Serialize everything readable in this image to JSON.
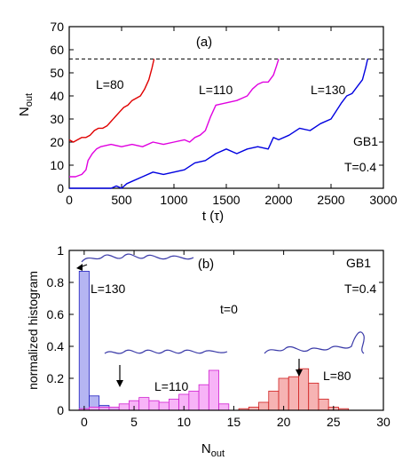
{
  "colors": {
    "red": "#e00000",
    "magenta": "#e000e0",
    "blue": "#0000e0",
    "red_fill": "#f4a6a6",
    "magenta_fill": "#f6a6f6",
    "blue_fill": "#a8a8f0",
    "dashed": "#000000",
    "chain": "#3a3aa8"
  },
  "chart_data": [
    {
      "type": "line",
      "panel_label": "(a)",
      "xlabel": "t (τ)",
      "ylabel_main": "N",
      "ylabel_sub": "out",
      "xlim": [
        0,
        3000
      ],
      "ylim": [
        0,
        70
      ],
      "xticks": [
        0,
        500,
        1000,
        1500,
        2000,
        2500,
        3000
      ],
      "yticks": [
        0,
        10,
        20,
        30,
        40,
        50,
        60,
        70
      ],
      "reference_line": {
        "y": 56,
        "style": "dashed"
      },
      "annotations": [
        "GB1",
        "T=0.4"
      ],
      "series": [
        {
          "name": "L=80",
          "color": "#e00000",
          "x": [
            0,
            40,
            80,
            120,
            160,
            200,
            240,
            280,
            320,
            360,
            400,
            440,
            480,
            520,
            560,
            600,
            640,
            680,
            720,
            760,
            790,
            810
          ],
          "y": [
            21,
            20,
            21,
            22,
            22,
            23,
            25,
            26,
            26,
            27,
            29,
            31,
            33,
            35,
            36,
            38,
            39,
            40,
            43,
            47,
            52,
            56
          ]
        },
        {
          "name": "L=110",
          "color": "#e000e0",
          "x": [
            0,
            60,
            120,
            160,
            180,
            220,
            260,
            300,
            400,
            500,
            600,
            700,
            800,
            900,
            1000,
            1100,
            1150,
            1200,
            1250,
            1300,
            1350,
            1400,
            1500,
            1600,
            1650,
            1700,
            1750,
            1800,
            1850,
            1900,
            1950,
            1980,
            2000
          ],
          "y": [
            5,
            5,
            6,
            8,
            12,
            15,
            17,
            18,
            19,
            18,
            19,
            18,
            20,
            19,
            20,
            21,
            20,
            22,
            23,
            25,
            31,
            36,
            37,
            38,
            39,
            40,
            43,
            45,
            46,
            46,
            49,
            53,
            56
          ]
        },
        {
          "name": "L=130",
          "color": "#0000e0",
          "x": [
            0,
            300,
            400,
            450,
            500,
            550,
            600,
            700,
            800,
            900,
            1000,
            1100,
            1200,
            1300,
            1400,
            1500,
            1600,
            1700,
            1800,
            1900,
            1950,
            2000,
            2100,
            2200,
            2300,
            2400,
            2500,
            2600,
            2650,
            2700,
            2750,
            2800,
            2830,
            2850
          ],
          "y": [
            0,
            0,
            0,
            1,
            0,
            2,
            3,
            5,
            7,
            6,
            7,
            8,
            11,
            12,
            15,
            17,
            15,
            17,
            18,
            17,
            22,
            21,
            23,
            26,
            25,
            28,
            30,
            37,
            40,
            41,
            44,
            47,
            52,
            56
          ]
        }
      ]
    },
    {
      "type": "bar",
      "panel_label": "(b)",
      "xlabel_main": "N",
      "xlabel_sub": "out",
      "ylabel": "normalized histogram",
      "xlim": [
        -1.5,
        30
      ],
      "ylim": [
        0,
        1
      ],
      "xticks": [
        0,
        5,
        10,
        15,
        20,
        25,
        30
      ],
      "yticks": [
        0,
        0.2,
        0.4,
        0.6,
        0.8,
        1
      ],
      "annotations": [
        "GB1",
        "T=0.4",
        "t=0"
      ],
      "series": [
        {
          "name": "L=130",
          "color": "#a8a8f0",
          "x": [
            0,
            1,
            2,
            3
          ],
          "values": [
            0.87,
            0.09,
            0.03,
            0.01
          ]
        },
        {
          "name": "L=110",
          "color": "#f6a6f6",
          "x": [
            0,
            1,
            2,
            3,
            4,
            5,
            6,
            7,
            8,
            9,
            10,
            11,
            12,
            13,
            14
          ],
          "values": [
            0.01,
            0.02,
            0.02,
            0.02,
            0.04,
            0.06,
            0.08,
            0.06,
            0.05,
            0.07,
            0.1,
            0.12,
            0.16,
            0.25,
            0.04
          ]
        },
        {
          "name": "L=80",
          "color": "#f4a6a6",
          "x": [
            16,
            17,
            18,
            19,
            20,
            21,
            22,
            23,
            24,
            25,
            26
          ],
          "values": [
            0.01,
            0.02,
            0.05,
            0.12,
            0.2,
            0.21,
            0.26,
            0.17,
            0.07,
            0.02,
            0.01
          ]
        }
      ]
    }
  ]
}
